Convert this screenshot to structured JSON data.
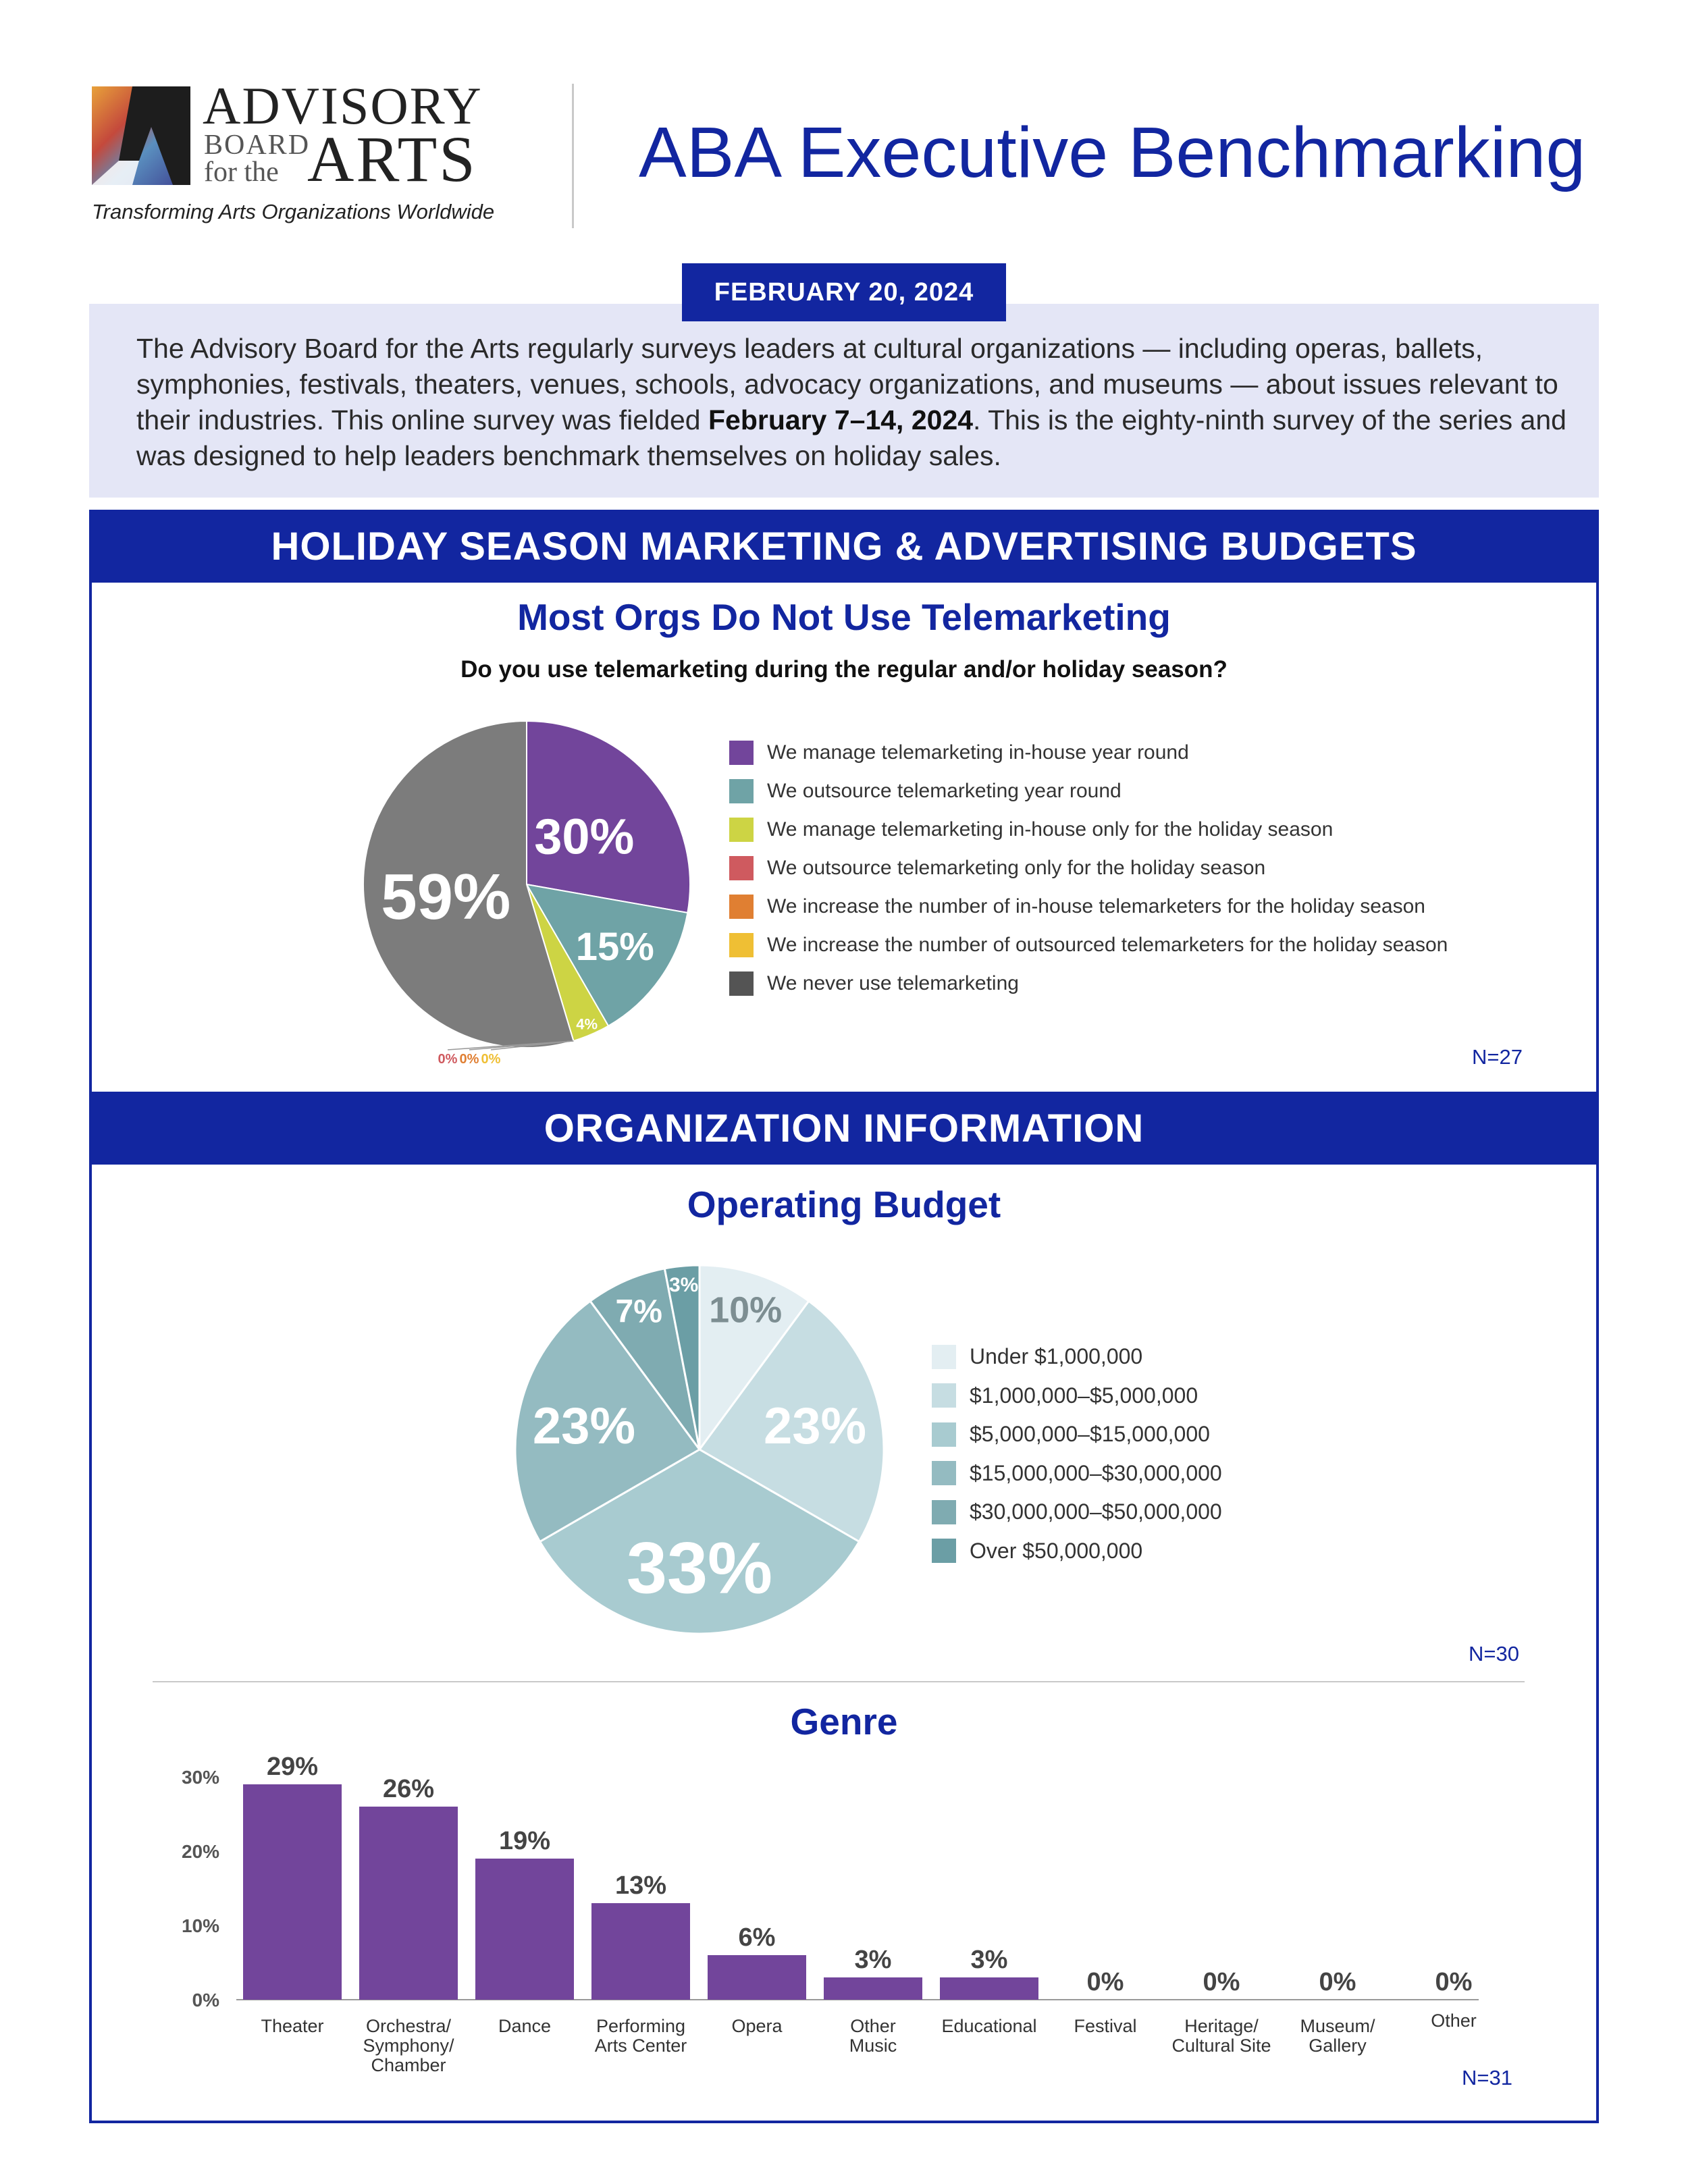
{
  "header": {
    "logo": {
      "line1": "ADVISORY",
      "line2a": "BOARD",
      "line2b": "for the",
      "line3": "ARTS",
      "tagline": "Transforming Arts Organizations Worldwide"
    },
    "title": "ABA Executive Benchmarking",
    "date": "FEBRUARY 20, 2024"
  },
  "intro": {
    "text_before": "The Advisory Board for the Arts regularly surveys leaders at cultural organizations — including operas, ballets, symphonies, festivals, theaters, venues, schools, advocacy organizations, and museums — about issues relevant to their industries. This online survey was fielded ",
    "dates": "February 7–14, 2024",
    "text_after": ". This is the eighty-ninth survey of the series and was designed to help leaders benchmark themselves on holiday sales."
  },
  "sections": {
    "holiday": "HOLIDAY SEASON MARKETING & ADVERTISING BUDGETS",
    "org": "ORGANIZATION INFORMATION"
  },
  "colors": {
    "brand_blue": "#1226a0",
    "purple": "#72459b"
  },
  "chart_data": [
    {
      "type": "pie",
      "title": "Most Orgs Do Not Use Telemarketing",
      "subtitle": "Do you use telemarketing during the regular and/or holiday season?",
      "n_label": "N=27",
      "slices": [
        {
          "label": "We manage telemarketing in-house year round",
          "value": 30,
          "display": "30%",
          "color": "#72459b"
        },
        {
          "label": "We outsource telemarketing year round",
          "value": 15,
          "display": "15%",
          "color": "#6fa3a6"
        },
        {
          "label": "We manage telemarketing in-house only for the holiday season",
          "value": 4,
          "display": "4%",
          "color": "#cdd444"
        },
        {
          "label": "We outsource telemarketing only for the holiday season",
          "value": 0,
          "display": "0%",
          "color": "#cf5a5f"
        },
        {
          "label": "We increase the number of in-house telemarketers for the holiday season",
          "value": 0,
          "display": "0%",
          "color": "#e07f32"
        },
        {
          "label": "We increase the number of outsourced telemarketers for the holiday season",
          "value": 0,
          "display": "0%",
          "color": "#efbf34"
        },
        {
          "label": "We never use telemarketing",
          "value": 59,
          "display": "59%",
          "color": "#7c7c7c",
          "legend_color": "#545454"
        }
      ]
    },
    {
      "type": "pie",
      "title": "Operating Budget",
      "n_label": "N=30",
      "slices": [
        {
          "label": "Under $1,000,000",
          "value": 10,
          "display": "10%",
          "color": "#e3eef2"
        },
        {
          "label": "$1,000,000–$5,000,000",
          "value": 23,
          "display": "23%",
          "color": "#c6dde2"
        },
        {
          "label": "$5,000,000–$15,000,000",
          "value": 33,
          "display": "33%",
          "color": "#a8cbd0"
        },
        {
          "label": "$15,000,000–$30,000,000",
          "value": 23,
          "display": "23%",
          "color": "#94bbc1"
        },
        {
          "label": "$30,000,000–$50,000,000",
          "value": 7,
          "display": "7%",
          "color": "#7fabb1"
        },
        {
          "label": "Over $50,000,000",
          "value": 3,
          "display": "3%",
          "color": "#6b9ea5"
        }
      ]
    },
    {
      "type": "bar",
      "title": "Genre",
      "n_label": "N=31",
      "categories": [
        "Theater",
        "Orchestra/ Symphony/ Chamber",
        "Dance",
        "Performing Arts Center",
        "Opera",
        "Other Music",
        "Educational",
        "Festival",
        "Heritage/ Cultural Site",
        "Museum/ Gallery",
        "Other"
      ],
      "category_lines": [
        [
          "Theater"
        ],
        [
          "Orchestra/",
          "Symphony/",
          "Chamber"
        ],
        [
          "Dance"
        ],
        [
          "Performing",
          "Arts Center"
        ],
        [
          "Opera"
        ],
        [
          "Other",
          "Music"
        ],
        [
          "Educational"
        ],
        [
          "Festival"
        ],
        [
          "Heritage/",
          "Cultural Site"
        ],
        [
          "Museum/",
          "Gallery"
        ],
        [
          "Other"
        ]
      ],
      "values": [
        29,
        26,
        19,
        13,
        6,
        3,
        3,
        0,
        0,
        0,
        0
      ],
      "value_labels": [
        "29%",
        "26%",
        "19%",
        "13%",
        "6%",
        "3%",
        "3%",
        "0%",
        "0%",
        "0%",
        "0%"
      ],
      "yticks": [
        "0%",
        "10%",
        "20%",
        "30%"
      ],
      "ylim": [
        0,
        30
      ],
      "color": "#72459b"
    }
  ]
}
